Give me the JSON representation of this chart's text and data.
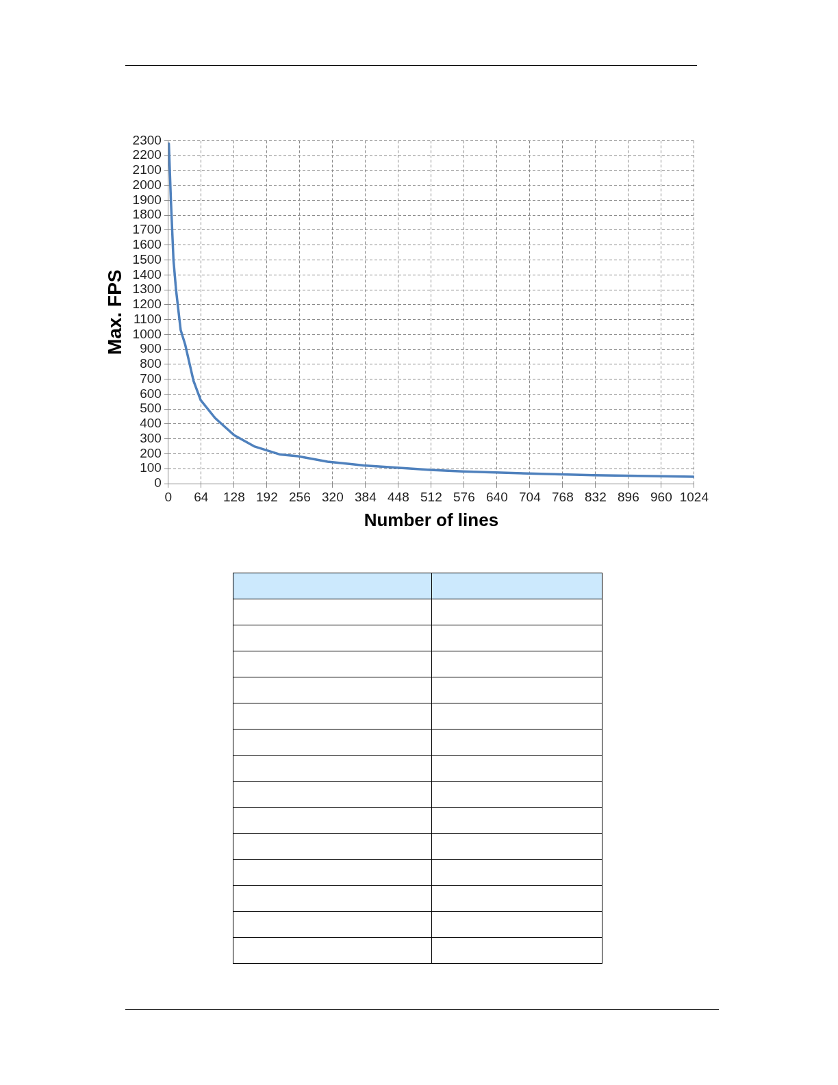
{
  "chart_data": {
    "type": "line",
    "xlabel": "Number of lines",
    "ylabel": "Max. FPS",
    "x": [
      1,
      5,
      10,
      15,
      24,
      33,
      49,
      63,
      91,
      128,
      167,
      218,
      252,
      310,
      380,
      510,
      573,
      701,
      828,
      1024
    ],
    "series": [
      {
        "color": "#4f81bd",
        "values": [
          2280,
          1900,
          1500,
          1300,
          1030,
          930,
          690,
          560,
          440,
          325,
          250,
          195,
          184,
          147,
          122,
          92,
          81,
          68,
          56,
          46
        ]
      }
    ],
    "xlim": [
      0,
      1024
    ],
    "xticks": [
      0,
      64,
      128,
      192,
      256,
      320,
      384,
      448,
      512,
      576,
      640,
      704,
      768,
      832,
      896,
      960,
      1024
    ],
    "ylim": [
      0,
      2300
    ],
    "yticks": [
      0,
      100,
      200,
      300,
      400,
      500,
      600,
      700,
      800,
      900,
      1000,
      1100,
      1200,
      1300,
      1400,
      1500,
      1600,
      1700,
      1800,
      1900,
      2000,
      2100,
      2200,
      2300
    ],
    "grid": true,
    "marker": "none"
  }
}
